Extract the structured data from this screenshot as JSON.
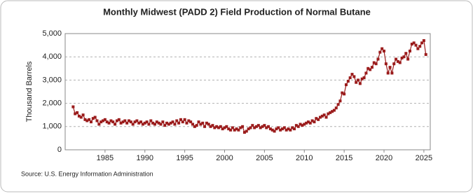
{
  "chart_data": {
    "type": "line",
    "title": "Monthly Midwest (PADD 2) Field Production of Normal Butane",
    "y_label": "Thousand Barrels",
    "source": "Source: U.S. Energy Information Administration",
    "grid": true,
    "xlim": [
      1980,
      2025.8
    ],
    "ylim": [
      0,
      5000
    ],
    "xticks": [
      1985,
      1990,
      1995,
      2000,
      2005,
      2010,
      2015,
      2020,
      2025
    ],
    "yticks": [
      0,
      {
        "value": 1000,
        "label": "1,000"
      },
      {
        "value": 2000,
        "label": "2,000"
      },
      {
        "value": 3000,
        "label": "3,000"
      },
      {
        "value": 4000,
        "label": "4,000"
      },
      {
        "value": 5000,
        "label": "5,000"
      }
    ],
    "x": [
      1981,
      1981.25,
      1981.5,
      1981.75,
      1982,
      1982.25,
      1982.5,
      1982.75,
      1983,
      1983.25,
      1983.5,
      1983.75,
      1984,
      1984.25,
      1984.5,
      1984.75,
      1985,
      1985.25,
      1985.5,
      1985.75,
      1986,
      1986.25,
      1986.5,
      1986.75,
      1987,
      1987.25,
      1987.5,
      1987.75,
      1988,
      1988.25,
      1988.5,
      1988.75,
      1989,
      1989.25,
      1989.5,
      1989.75,
      1990,
      1990.25,
      1990.5,
      1990.75,
      1991,
      1991.25,
      1991.5,
      1991.75,
      1992,
      1992.25,
      1992.5,
      1992.75,
      1993,
      1993.25,
      1993.5,
      1993.75,
      1994,
      1994.25,
      1994.5,
      1994.75,
      1995,
      1995.25,
      1995.5,
      1995.75,
      1996,
      1996.25,
      1996.5,
      1996.75,
      1997,
      1997.25,
      1997.5,
      1997.75,
      1998,
      1998.25,
      1998.5,
      1998.75,
      1999,
      1999.25,
      1999.5,
      1999.75,
      2000,
      2000.25,
      2000.5,
      2000.75,
      2001,
      2001.25,
      2001.5,
      2001.75,
      2002,
      2002.25,
      2002.5,
      2002.75,
      2003,
      2003.25,
      2003.5,
      2003.75,
      2004,
      2004.25,
      2004.5,
      2004.75,
      2005,
      2005.25,
      2005.5,
      2005.75,
      2006,
      2006.25,
      2006.5,
      2006.75,
      2007,
      2007.25,
      2007.5,
      2007.75,
      2008,
      2008.25,
      2008.5,
      2008.75,
      2009,
      2009.25,
      2009.5,
      2009.75,
      2010,
      2010.25,
      2010.5,
      2010.75,
      2011,
      2011.25,
      2011.5,
      2011.75,
      2012,
      2012.25,
      2012.5,
      2012.75,
      2013,
      2013.25,
      2013.5,
      2013.75,
      2014,
      2014.25,
      2014.5,
      2014.75,
      2015,
      2015.25,
      2015.5,
      2015.75,
      2016,
      2016.25,
      2016.5,
      2016.75,
      2017,
      2017.25,
      2017.5,
      2017.75,
      2018,
      2018.25,
      2018.5,
      2018.75,
      2019,
      2019.25,
      2019.5,
      2019.75,
      2020,
      2020.25,
      2020.5,
      2020.75,
      2021,
      2021.25,
      2021.5,
      2021.75,
      2022,
      2022.25,
      2022.5,
      2022.75,
      2023,
      2023.25,
      2023.5,
      2023.75,
      2024,
      2024.25,
      2024.5,
      2024.75,
      2025,
      2025.25
    ],
    "series": [
      {
        "name": "Normal Butane",
        "color": "#9b1c1c",
        "values": [
          1850,
          1550,
          1600,
          1450,
          1400,
          1500,
          1300,
          1250,
          1300,
          1200,
          1350,
          1400,
          1250,
          1100,
          1200,
          1250,
          1300,
          1200,
          1150,
          1250,
          1200,
          1100,
          1250,
          1300,
          1150,
          1200,
          1250,
          1150,
          1250,
          1200,
          1100,
          1200,
          1250,
          1150,
          1200,
          1100,
          1150,
          1200,
          1100,
          1250,
          1150,
          1100,
          1200,
          1150,
          1100,
          1200,
          1050,
          1150,
          1100,
          1150,
          1200,
          1100,
          1250,
          1150,
          1300,
          1200,
          1300,
          1150,
          1250,
          1200,
          1100,
          1000,
          1050,
          1200,
          1100,
          1150,
          1000,
          1150,
          1100,
          1000,
          1050,
          950,
          1000,
          950,
          1000,
          900,
          950,
          1000,
          900,
          850,
          950,
          850,
          900,
          850,
          950,
          1000,
          750,
          800,
          900,
          950,
          1050,
          950,
          1000,
          1050,
          950,
          1000,
          1050,
          950,
          1000,
          900,
          850,
          800,
          900,
          950,
          850,
          900,
          950,
          850,
          900,
          850,
          950,
          900,
          1050,
          1000,
          1100,
          1050,
          1100,
          1150,
          1200,
          1150,
          1250,
          1200,
          1350,
          1300,
          1400,
          1450,
          1500,
          1400,
          1550,
          1600,
          1650,
          1700,
          1800,
          1950,
          2100,
          2450,
          2400,
          2800,
          2950,
          3100,
          3250,
          3150,
          2900,
          3000,
          2850,
          3050,
          3100,
          3300,
          3500,
          3450,
          3550,
          3750,
          3700,
          3900,
          4200,
          4350,
          4250,
          3700,
          3300,
          3550,
          3300,
          3700,
          3900,
          3800,
          3750,
          3950,
          4000,
          4150,
          3900,
          4250,
          4550,
          4600,
          4500,
          4350,
          4450,
          4600,
          4700,
          4100
        ]
      }
    ]
  }
}
